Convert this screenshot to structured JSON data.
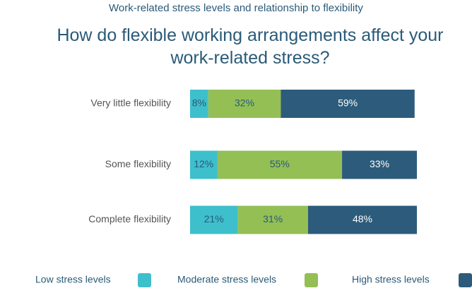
{
  "chart_data": {
    "type": "stacked-bar-horizontal",
    "subtitle": "Work-related stress levels and relationship to flexibility",
    "title": "How do flexible working arrangements affect your work-related stress?",
    "categories": [
      "Very little flexibility",
      "Some flexibility",
      "Complete flexibility"
    ],
    "series": [
      {
        "name": "Low stress levels",
        "color": "#3ebfcc",
        "values": [
          8,
          12,
          21
        ],
        "value_labels": [
          "8%",
          "12%",
          "21%"
        ]
      },
      {
        "name": "Moderate stress levels",
        "color": "#93bf55",
        "values": [
          32,
          55,
          31
        ],
        "value_labels": [
          "32%",
          "55%",
          "31%"
        ]
      },
      {
        "name": "High stress levels",
        "color": "#2d5b7b",
        "values": [
          59,
          33,
          48
        ],
        "value_labels": [
          "59%",
          "33%",
          "48%"
        ]
      }
    ]
  }
}
